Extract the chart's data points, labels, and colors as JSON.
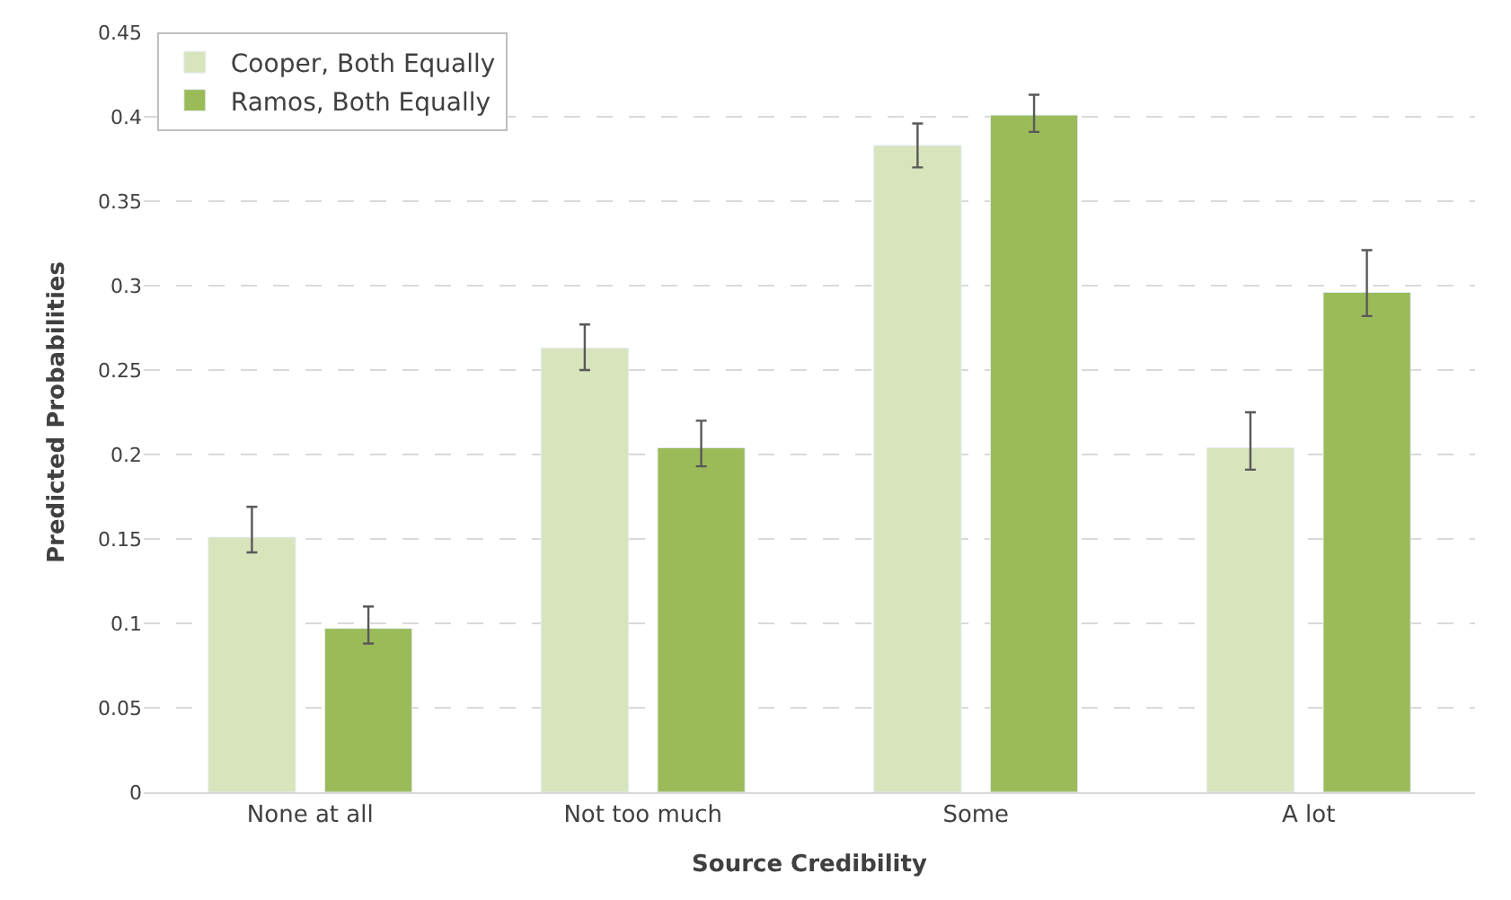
{
  "chart_data": {
    "type": "bar",
    "xlabel": "Source Credibility",
    "ylabel": "Predicted Probabilities",
    "categories": [
      "None at all",
      "Not too much",
      "Some",
      "A lot"
    ],
    "series": [
      {
        "name": "Cooper, Both Equally",
        "color": "#d8e4bc",
        "values": [
          0.151,
          0.263,
          0.383,
          0.204
        ],
        "errors": [
          [
            0.142,
            0.169
          ],
          [
            0.25,
            0.277
          ],
          [
            0.37,
            0.396
          ],
          [
            0.191,
            0.225
          ]
        ]
      },
      {
        "name": "Ramos, Both Equally",
        "color": "#9bbb59",
        "values": [
          0.097,
          0.204,
          0.401,
          0.296
        ],
        "errors": [
          [
            0.088,
            0.11
          ],
          [
            0.193,
            0.22
          ],
          [
            0.391,
            0.413
          ],
          [
            0.282,
            0.321
          ]
        ]
      }
    ],
    "ylim": [
      0,
      0.45
    ],
    "yticks": [
      0,
      0.05,
      0.1,
      0.15,
      0.2,
      0.25,
      0.3,
      0.35,
      0.4,
      0.45
    ],
    "grid": "y",
    "legend": "top left"
  }
}
